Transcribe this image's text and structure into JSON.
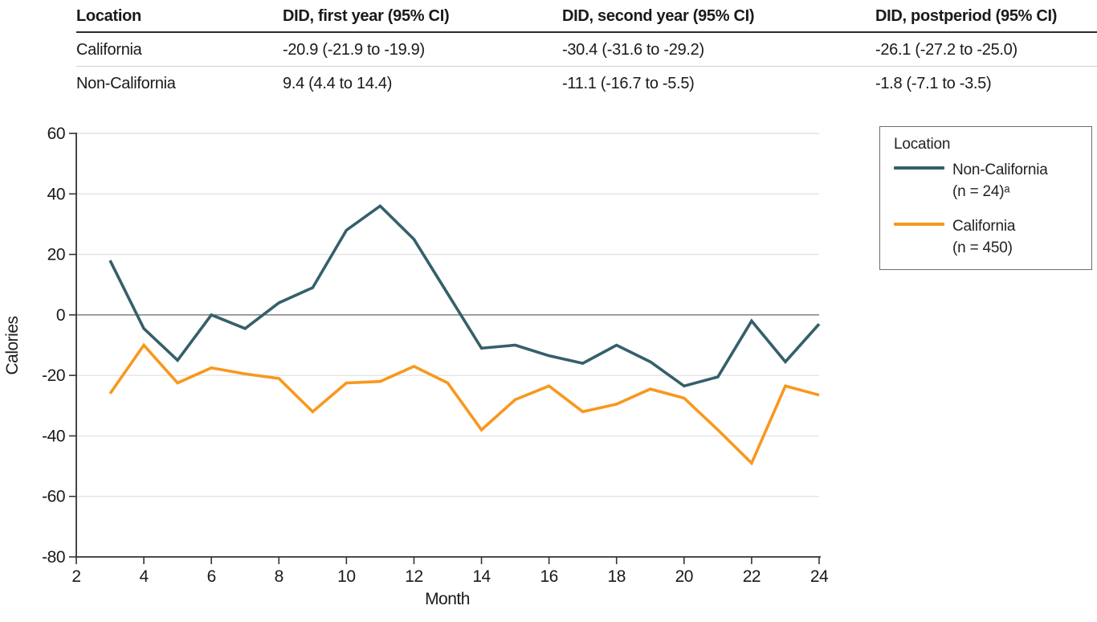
{
  "table": {
    "columns": [
      "Location",
      "DID, first year (95% CI)",
      "DID, second year (95% CI)",
      "DID, postperiod (95% CI)"
    ],
    "rows": [
      [
        "California",
        "-20.9 (-21.9 to -19.9)",
        "-30.4 (-31.6 to -29.2)",
        "-26.1 (-27.2 to -25.0)"
      ],
      [
        "Non-California",
        "9.4 (4.4 to 14.4)",
        "-11.1 (-16.7 to -5.5)",
        "-1.8 (-7.1 to -3.5)"
      ]
    ]
  },
  "legend": {
    "title": "Location",
    "entries": [
      {
        "label_line1": "Non-California",
        "label_line2": "(n = 24)ᵃ",
        "color": "#355F6B"
      },
      {
        "label_line1": "California",
        "label_line2": "(n = 450)",
        "color": "#F8981D"
      }
    ]
  },
  "chart_data": {
    "type": "line",
    "title": "",
    "xlabel": "Month",
    "ylabel": "Calories",
    "xlim": [
      2,
      24
    ],
    "ylim": [
      -80,
      60
    ],
    "x_ticks": [
      2,
      4,
      6,
      8,
      10,
      12,
      14,
      16,
      18,
      20,
      22,
      24
    ],
    "y_ticks": [
      60,
      40,
      20,
      0,
      -20,
      -40,
      -60,
      -80
    ],
    "grid": "horizontal gridlines at every y tick; zero line darker gray; no top/right frame",
    "legend_position": "outside top-right",
    "x": [
      3,
      4,
      5,
      6,
      7,
      8,
      9,
      10,
      11,
      12,
      13,
      14,
      15,
      16,
      17,
      18,
      19,
      20,
      21,
      22,
      23,
      24
    ],
    "series": [
      {
        "name": "Non-California (n = 24)",
        "color": "#355F6B",
        "values": [
          18,
          -4.5,
          -15,
          0,
          -4.5,
          4,
          9,
          28,
          36,
          25,
          7,
          -11,
          -10,
          -13.5,
          -16,
          -10,
          -15.5,
          -23.5,
          -20.5,
          -2,
          -15.5,
          -3
        ]
      },
      {
        "name": "California (n = 450)",
        "color": "#F8981D",
        "values": [
          -26,
          -10,
          -22.5,
          -17.5,
          -19.5,
          -21,
          -32,
          -22.5,
          -22,
          -17,
          -22.5,
          -38,
          -28,
          -23.5,
          -32,
          -29.5,
          -24.5,
          -27.5,
          -38,
          -49,
          -23.5,
          -26.5
        ]
      }
    ]
  },
  "colors": {
    "axis": "#333333",
    "grid_light": "#e4e4e4",
    "grid_zero": "#8a8a8a",
    "text": "#1a1a1a",
    "table_rule_dark": "#2b2b2b",
    "table_rule_light": "#cfcfcf"
  }
}
